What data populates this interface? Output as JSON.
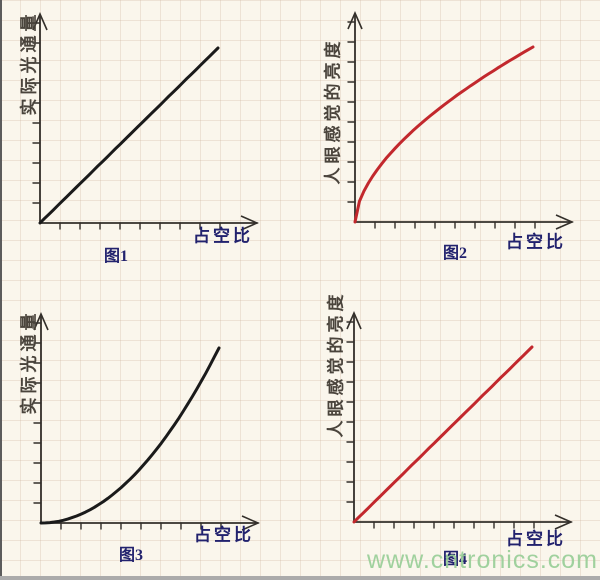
{
  "page": {
    "watermark": "www.cntronics.com"
  },
  "colors": {
    "background": "#faf6ec",
    "grid_line": "rgba(205,180,158,0.30)",
    "axis": "#332f2a",
    "label_navy": "#22226e",
    "ylabel_dark": "#4a443c",
    "black_curve": "#1a1a1a",
    "red_curve": "#c2282d",
    "watermark_green": "rgba(150,205,150,0.9)",
    "edge_dark": "#5c5c5c",
    "edge_grey": "#ababab"
  },
  "chart_data": [
    {
      "id": "fig1",
      "type": "line",
      "title": "图1",
      "xlabel": "占空比",
      "ylabel": "实际光通量",
      "curve": "power",
      "exponent": 1.0,
      "line_color": "#1a1a1a",
      "line_width": 3,
      "x_range": [
        0,
        1
      ],
      "y_range": [
        0,
        1
      ],
      "x_ticks": 9,
      "y_ticks": 10,
      "grid": true,
      "legend": false
    },
    {
      "id": "fig2",
      "type": "line",
      "title": "图2",
      "xlabel": "占空比",
      "ylabel": "人眼感觉的亮度",
      "curve": "power",
      "exponent": 0.58,
      "line_color": "#c2282d",
      "line_width": 3,
      "x_range": [
        0,
        1
      ],
      "y_range": [
        0,
        1
      ],
      "x_ticks": 9,
      "y_ticks": 10,
      "grid": true,
      "legend": false
    },
    {
      "id": "fig3",
      "type": "line",
      "title": "图3",
      "xlabel": "占空比",
      "ylabel": "实际光通量",
      "curve": "power",
      "exponent": 2.0,
      "line_color": "#1a1a1a",
      "line_width": 3,
      "x_range": [
        0,
        1
      ],
      "y_range": [
        0,
        1
      ],
      "x_ticks": 9,
      "y_ticks": 10,
      "grid": true,
      "legend": false
    },
    {
      "id": "fig4",
      "type": "line",
      "title": "图4",
      "xlabel": "占空比",
      "ylabel": "人眼感觉的亮度",
      "curve": "power",
      "exponent": 1.0,
      "line_color": "#c2282d",
      "line_width": 3,
      "x_range": [
        0,
        1
      ],
      "y_range": [
        0,
        1
      ],
      "x_ticks": 9,
      "y_ticks": 10,
      "grid": true,
      "legend": false
    }
  ]
}
